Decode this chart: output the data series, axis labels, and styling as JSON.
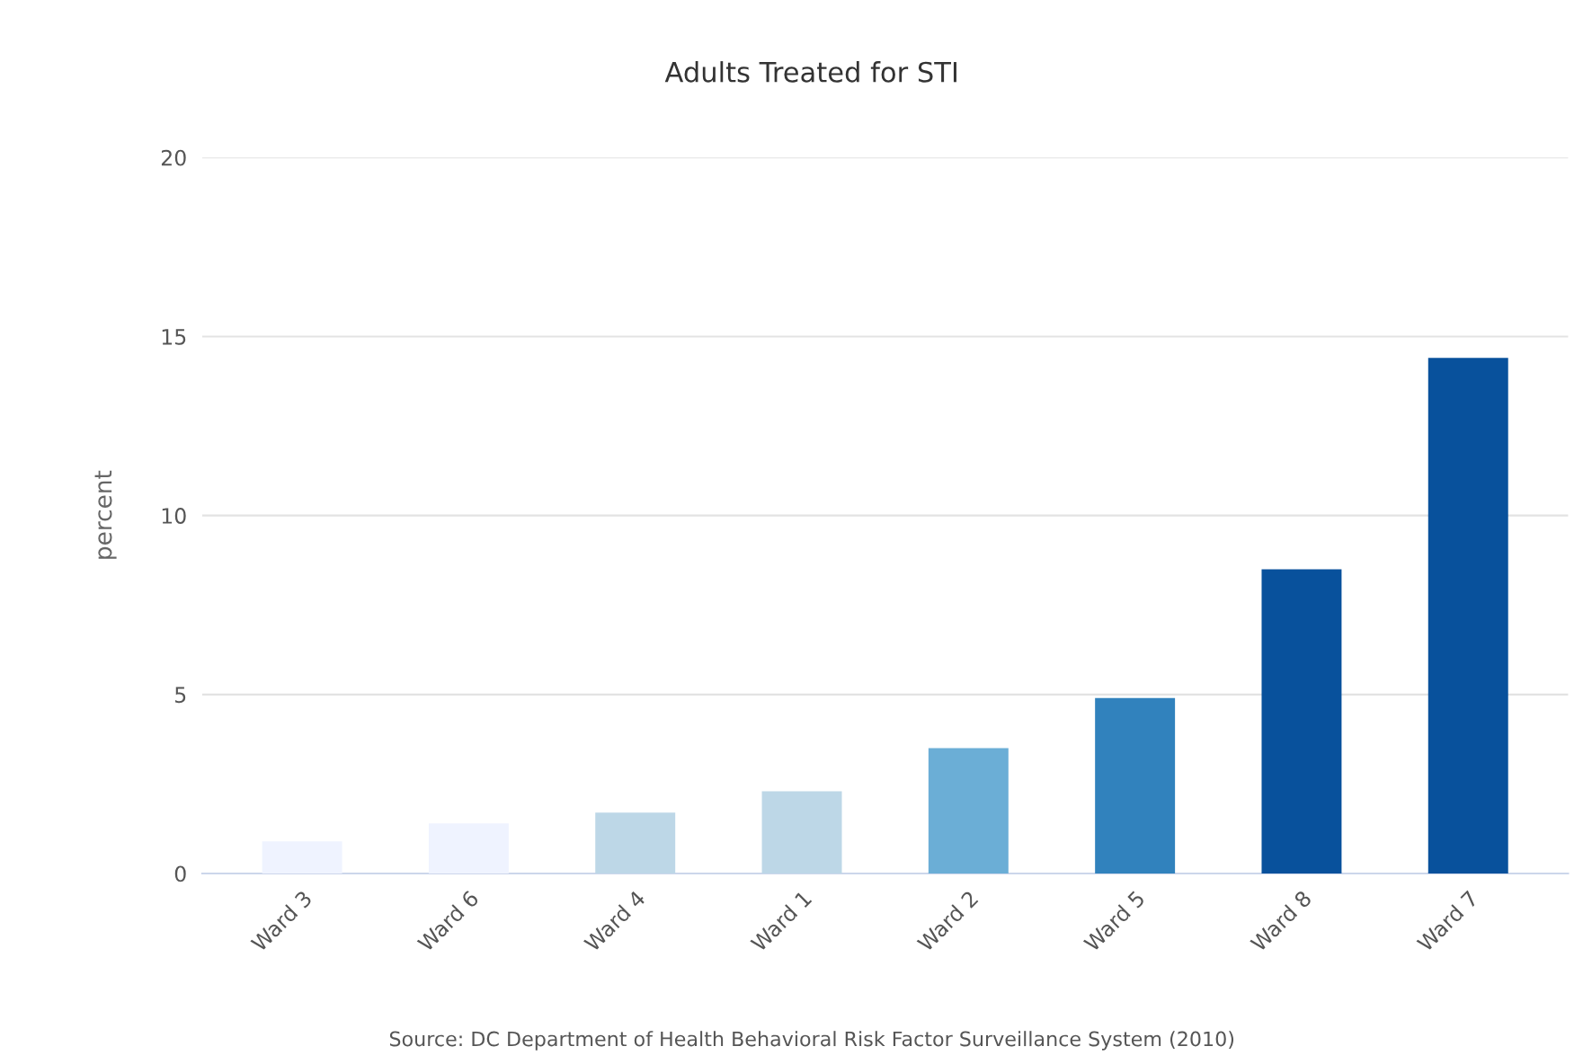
{
  "chart_data": {
    "type": "bar",
    "title": "Adults Treated for STI",
    "ylabel": "percent",
    "categories": [
      "Ward 3",
      "Ward 6",
      "Ward 4",
      "Ward 1",
      "Ward 2",
      "Ward 5",
      "Ward 8",
      "Ward 7"
    ],
    "values": [
      0.9,
      1.4,
      1.7,
      2.3,
      3.5,
      4.9,
      8.5,
      14.4
    ],
    "colors": [
      "#eff3ff",
      "#eff3ff",
      "#bdd7e7",
      "#bdd7e7",
      "#6baed6",
      "#3182bd",
      "#08519c",
      "#08519c"
    ],
    "ylim": [
      0,
      20
    ],
    "yticks": [
      0,
      5,
      10,
      15,
      20
    ],
    "grid": "y",
    "legend": false,
    "annotations": [
      "Source: DC Department of Health Behavioral Risk Factor Surveillance System (2010)"
    ]
  }
}
